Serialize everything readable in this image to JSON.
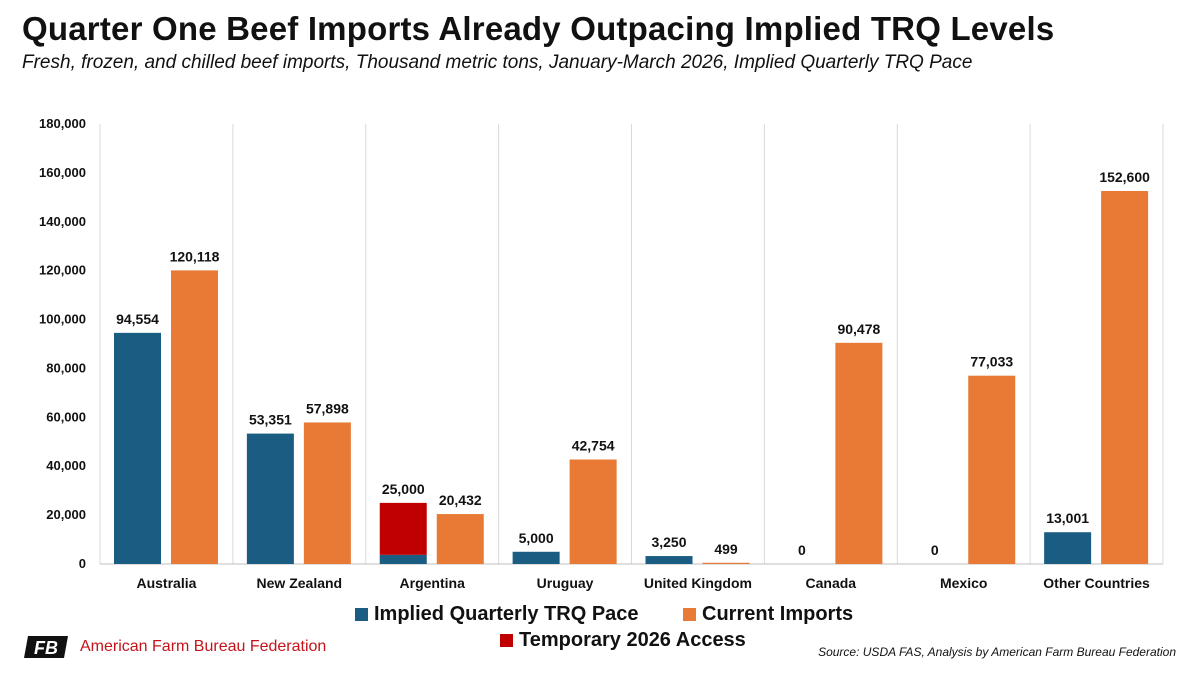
{
  "title": "Quarter One Beef Imports Already Outpacing Implied TRQ Levels",
  "subtitle": "Fresh, frozen, and chilled beef imports, Thousand metric tons, January-March 2026, Implied Quarterly TRQ Pace",
  "source": "Source: USDA FAS, Analysis by American Farm Bureau Federation",
  "logo": {
    "text": "American Farm Bureau Federation",
    "icon": "afbf-logo-icon",
    "mark_text": "FB"
  },
  "colors": {
    "trq": "#1a5c82",
    "current": "#e87a35",
    "temporary": "#c00000",
    "grid": "#d9d9d9"
  },
  "legend": [
    {
      "label": "Implied Quarterly TRQ Pace",
      "color": "#1a5c82"
    },
    {
      "label": "Current Imports",
      "color": "#e87a35"
    },
    {
      "label": "Temporary 2026 Access",
      "color": "#c00000"
    }
  ],
  "chart_data": {
    "type": "bar",
    "categories": [
      "Australia",
      "New Zealand",
      "Argentina",
      "Uruguay",
      "United Kingdom",
      "Canada",
      "Mexico",
      "Other Countries"
    ],
    "series": [
      {
        "name": "Implied Quarterly TRQ Pace",
        "values": [
          94554,
          53351,
          3750,
          5000,
          3250,
          0,
          0,
          13001
        ]
      },
      {
        "name": "Temporary 2026 Access",
        "values": [
          0,
          0,
          21250,
          0,
          0,
          0,
          0,
          0
        ],
        "stacked_on": "Implied Quarterly TRQ Pace"
      },
      {
        "name": "Current Imports",
        "values": [
          120118,
          57898,
          20432,
          42754,
          499,
          90478,
          77033,
          152600
        ]
      }
    ],
    "data_labels": {
      "trq": [
        "94,554",
        "53,351",
        "25,000",
        "5,000",
        "3,250",
        "0",
        "0",
        "13,001"
      ],
      "current": [
        "120,118",
        "57,898",
        "20,432",
        "42,754",
        "499",
        "90,478",
        "77,033",
        "152,600"
      ]
    },
    "ylim": [
      0,
      180000
    ],
    "yticks": [
      0,
      20000,
      40000,
      60000,
      80000,
      100000,
      120000,
      140000,
      160000,
      180000
    ],
    "ytick_labels": [
      "0",
      "20,000",
      "40,000",
      "60,000",
      "80,000",
      "100,000",
      "120,000",
      "140,000",
      "160,000",
      "180,000"
    ],
    "grid": "vertical category separators",
    "legend_position": "bottom"
  }
}
